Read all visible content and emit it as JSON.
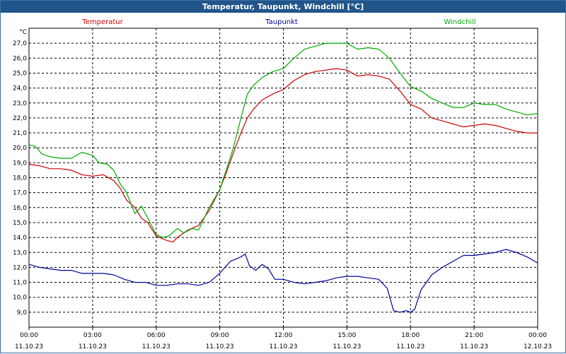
{
  "window": {
    "title": "Temperatur, Taupunkt, Windchill [°C]"
  },
  "chart_data": {
    "type": "line",
    "title": "Temperatur, Taupunkt, Windchill [°C]",
    "y_unit_label": "°C",
    "ylim": [
      8.0,
      28.0
    ],
    "xlim": [
      0,
      24
    ],
    "grid": true,
    "legend_placement": "top",
    "y_ticks": [
      "9,0",
      "10,0",
      "11,0",
      "12,0",
      "13,0",
      "14,0",
      "15,0",
      "16,0",
      "17,0",
      "18,0",
      "19,0",
      "20,0",
      "21,0",
      "22,0",
      "23,0",
      "24,0",
      "25,0",
      "26,0",
      "27,0"
    ],
    "x_ticks": [
      {
        "time": "00:00",
        "date": "11.10.23"
      },
      {
        "time": "03:00",
        "date": "11.10.23"
      },
      {
        "time": "06:00",
        "date": "11.10.23"
      },
      {
        "time": "09:00",
        "date": "11.10.23"
      },
      {
        "time": "12:00",
        "date": "11.10.23"
      },
      {
        "time": "15:00",
        "date": "11.10.23"
      },
      {
        "time": "18:00",
        "date": "11.10.23"
      },
      {
        "time": "21:00",
        "date": "11.10.23"
      },
      {
        "time": "00:00",
        "date": "12.10.23"
      }
    ],
    "x_unit": "hours since 11.10.23 00:00",
    "series": [
      {
        "name": "Temperatur",
        "color": "#cc0000",
        "points": [
          [
            0.0,
            18.9
          ],
          [
            0.5,
            18.8
          ],
          [
            1.0,
            18.6
          ],
          [
            1.5,
            18.6
          ],
          [
            2.0,
            18.5
          ],
          [
            2.5,
            18.2
          ],
          [
            3.0,
            18.1
          ],
          [
            3.5,
            18.2
          ],
          [
            4.0,
            17.8
          ],
          [
            4.3,
            17.3
          ],
          [
            4.6,
            16.5
          ],
          [
            5.0,
            16.0
          ],
          [
            5.3,
            15.3
          ],
          [
            5.6,
            15.0
          ],
          [
            6.0,
            14.1
          ],
          [
            6.5,
            13.8
          ],
          [
            6.8,
            13.7
          ],
          [
            7.0,
            14.0
          ],
          [
            7.5,
            14.5
          ],
          [
            8.0,
            14.8
          ],
          [
            8.5,
            15.8
          ],
          [
            9.0,
            17.2
          ],
          [
            9.3,
            18.3
          ],
          [
            9.6,
            19.5
          ],
          [
            10.0,
            21.0
          ],
          [
            10.3,
            22.0
          ],
          [
            10.6,
            22.6
          ],
          [
            11.0,
            23.2
          ],
          [
            11.5,
            23.6
          ],
          [
            12.0,
            23.9
          ],
          [
            12.5,
            24.5
          ],
          [
            13.0,
            24.9
          ],
          [
            13.5,
            25.1
          ],
          [
            14.0,
            25.2
          ],
          [
            14.5,
            25.3
          ],
          [
            15.0,
            25.2
          ],
          [
            15.5,
            24.8
          ],
          [
            16.0,
            24.9
          ],
          [
            16.5,
            24.8
          ],
          [
            17.0,
            24.6
          ],
          [
            17.5,
            23.8
          ],
          [
            18.0,
            22.9
          ],
          [
            18.5,
            22.6
          ],
          [
            19.0,
            22.0
          ],
          [
            19.5,
            21.8
          ],
          [
            20.0,
            21.6
          ],
          [
            20.5,
            21.4
          ],
          [
            21.0,
            21.5
          ],
          [
            21.5,
            21.6
          ],
          [
            22.0,
            21.5
          ],
          [
            22.5,
            21.3
          ],
          [
            23.0,
            21.1
          ],
          [
            23.5,
            21.0
          ],
          [
            24.0,
            21.0
          ]
        ]
      },
      {
        "name": "Taupunkt",
        "color": "#000099",
        "points": [
          [
            0.0,
            12.2
          ],
          [
            0.5,
            12.0
          ],
          [
            1.0,
            11.9
          ],
          [
            1.5,
            11.8
          ],
          [
            2.0,
            11.8
          ],
          [
            2.5,
            11.6
          ],
          [
            3.0,
            11.6
          ],
          [
            3.5,
            11.6
          ],
          [
            4.0,
            11.5
          ],
          [
            4.5,
            11.2
          ],
          [
            5.0,
            11.0
          ],
          [
            5.5,
            11.0
          ],
          [
            6.0,
            10.8
          ],
          [
            6.5,
            10.8
          ],
          [
            7.0,
            10.9
          ],
          [
            7.5,
            10.9
          ],
          [
            8.0,
            10.8
          ],
          [
            8.5,
            11.0
          ],
          [
            9.0,
            11.6
          ],
          [
            9.5,
            12.4
          ],
          [
            10.0,
            12.7
          ],
          [
            10.2,
            12.9
          ],
          [
            10.4,
            12.1
          ],
          [
            10.7,
            11.8
          ],
          [
            11.0,
            12.2
          ],
          [
            11.3,
            11.9
          ],
          [
            11.6,
            11.2
          ],
          [
            12.0,
            11.2
          ],
          [
            12.5,
            11.0
          ],
          [
            13.0,
            10.9
          ],
          [
            13.5,
            11.0
          ],
          [
            14.0,
            11.1
          ],
          [
            14.5,
            11.3
          ],
          [
            15.0,
            11.4
          ],
          [
            15.5,
            11.4
          ],
          [
            16.0,
            11.3
          ],
          [
            16.5,
            11.2
          ],
          [
            16.9,
            10.6
          ],
          [
            17.2,
            9.1
          ],
          [
            17.5,
            9.0
          ],
          [
            17.8,
            9.1
          ],
          [
            18.0,
            9.0
          ],
          [
            18.2,
            9.2
          ],
          [
            18.5,
            10.5
          ],
          [
            19.0,
            11.5
          ],
          [
            19.5,
            12.0
          ],
          [
            20.0,
            12.4
          ],
          [
            20.5,
            12.8
          ],
          [
            21.0,
            12.8
          ],
          [
            21.5,
            12.9
          ],
          [
            22.0,
            13.0
          ],
          [
            22.5,
            13.2
          ],
          [
            23.0,
            13.0
          ],
          [
            23.5,
            12.7
          ],
          [
            24.0,
            12.3
          ]
        ]
      },
      {
        "name": "Windchill",
        "color": "#00aa00",
        "points": [
          [
            0.0,
            20.2
          ],
          [
            0.3,
            20.1
          ],
          [
            0.6,
            19.6
          ],
          [
            1.0,
            19.4
          ],
          [
            1.5,
            19.3
          ],
          [
            2.0,
            19.3
          ],
          [
            2.5,
            19.7
          ],
          [
            3.0,
            19.5
          ],
          [
            3.3,
            19.0
          ],
          [
            3.7,
            18.9
          ],
          [
            4.0,
            18.5
          ],
          [
            4.3,
            17.6
          ],
          [
            4.6,
            17.0
          ],
          [
            5.0,
            15.6
          ],
          [
            5.3,
            16.1
          ],
          [
            5.6,
            15.3
          ],
          [
            6.0,
            14.2
          ],
          [
            6.3,
            14.0
          ],
          [
            6.6,
            14.1
          ],
          [
            7.0,
            14.6
          ],
          [
            7.3,
            14.3
          ],
          [
            7.7,
            14.6
          ],
          [
            8.0,
            14.5
          ],
          [
            8.5,
            16.0
          ],
          [
            9.0,
            17.2
          ],
          [
            9.3,
            18.5
          ],
          [
            9.6,
            19.8
          ],
          [
            10.0,
            22.0
          ],
          [
            10.3,
            23.6
          ],
          [
            10.6,
            24.2
          ],
          [
            11.0,
            24.7
          ],
          [
            11.5,
            25.1
          ],
          [
            12.0,
            25.3
          ],
          [
            12.5,
            26.0
          ],
          [
            13.0,
            26.6
          ],
          [
            13.5,
            26.8
          ],
          [
            14.0,
            27.0
          ],
          [
            14.5,
            27.0
          ],
          [
            15.0,
            27.0
          ],
          [
            15.5,
            26.6
          ],
          [
            16.0,
            26.7
          ],
          [
            16.5,
            26.6
          ],
          [
            17.0,
            26.0
          ],
          [
            17.5,
            25.0
          ],
          [
            18.0,
            24.1
          ],
          [
            18.5,
            23.8
          ],
          [
            19.0,
            23.3
          ],
          [
            19.5,
            23.0
          ],
          [
            20.0,
            22.7
          ],
          [
            20.5,
            22.7
          ],
          [
            21.0,
            23.0
          ],
          [
            21.5,
            22.9
          ],
          [
            22.0,
            22.9
          ],
          [
            22.5,
            22.6
          ],
          [
            23.0,
            22.4
          ],
          [
            23.5,
            22.2
          ],
          [
            24.0,
            22.3
          ]
        ]
      }
    ]
  }
}
